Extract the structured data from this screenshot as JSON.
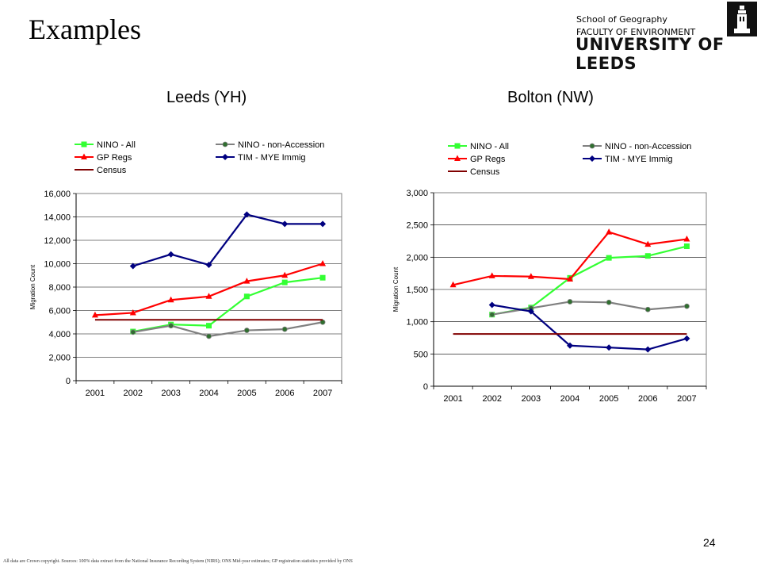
{
  "slide": {
    "title": "Examples",
    "dept": "School of Geography",
    "faculty": "FACULTY OF ENVIRONMENT",
    "university": "UNIVERSITY OF LEEDS",
    "page_number": "24",
    "footnote": "All data are Crown copyright. Sources: 100% data extract from the National Insurance Recording System (NIRS); ONS Mid-year estimates; GP registration statistics provided by ONS"
  },
  "colors": {
    "nino_all": "#33ff33",
    "nino_non_accession": "#808080",
    "gp_regs": "#ff0000",
    "tim_mye": "#000080",
    "census": "#800000"
  },
  "chart_data": [
    {
      "type": "line",
      "title": "Leeds (YH)",
      "ylabel": "Migration Count",
      "xlabel": "",
      "categories": [
        "2001",
        "2002",
        "2003",
        "2004",
        "2005",
        "2006",
        "2007"
      ],
      "ylim": [
        0,
        16000
      ],
      "yticks": [
        "0",
        "2,000",
        "4,000",
        "6,000",
        "8,000",
        "10,000",
        "12,000",
        "14,000",
        "16,000"
      ],
      "yticks_values": [
        0,
        2000,
        4000,
        6000,
        8000,
        10000,
        12000,
        14000,
        16000
      ],
      "grid": true,
      "legend": "top",
      "series": [
        {
          "name": "NINO - All",
          "key": "nino_all",
          "marker": "square",
          "values": [
            null,
            4200,
            4800,
            4700,
            7200,
            8400,
            8800
          ]
        },
        {
          "name": "NINO - non-Accession",
          "key": "nino_non_accession",
          "marker": "circle",
          "values": [
            null,
            4150,
            4700,
            3800,
            4300,
            4400,
            5000
          ]
        },
        {
          "name": "GP Regs",
          "key": "gp_regs",
          "marker": "triangle",
          "values": [
            5600,
            5800,
            6900,
            7200,
            8500,
            9000,
            10000
          ]
        },
        {
          "name": "TIM - MYE Immig",
          "key": "tim_mye",
          "marker": "diamond",
          "values": [
            null,
            9800,
            10800,
            9900,
            14200,
            13400,
            13400
          ]
        },
        {
          "name": "Census",
          "key": "census",
          "marker": "none",
          "values": [
            5200,
            5200,
            5200,
            5200,
            5200,
            5200,
            5200
          ]
        }
      ]
    },
    {
      "type": "line",
      "title": "Bolton (NW)",
      "ylabel": "Migration Count",
      "xlabel": "",
      "categories": [
        "2001",
        "2002",
        "2003",
        "2004",
        "2005",
        "2006",
        "2007"
      ],
      "ylim": [
        0,
        3000
      ],
      "yticks": [
        "0",
        "500",
        "1,000",
        "1,500",
        "2,000",
        "2,500",
        "3,000"
      ],
      "yticks_values": [
        0,
        500,
        1000,
        1500,
        2000,
        2500,
        3000
      ],
      "grid": true,
      "legend": "top",
      "series": [
        {
          "name": "NINO - All",
          "key": "nino_all",
          "marker": "square",
          "values": [
            null,
            1110,
            1220,
            1680,
            1990,
            2020,
            2170
          ]
        },
        {
          "name": "NINO - non-Accession",
          "key": "nino_non_accession",
          "marker": "circle",
          "values": [
            null,
            1110,
            1210,
            1310,
            1300,
            1190,
            1240
          ]
        },
        {
          "name": "GP Regs",
          "key": "gp_regs",
          "marker": "triangle",
          "values": [
            1570,
            1710,
            1700,
            1660,
            2390,
            2200,
            2280
          ]
        },
        {
          "name": "TIM - MYE Immig",
          "key": "tim_mye",
          "marker": "diamond",
          "values": [
            null,
            1260,
            1160,
            630,
            600,
            570,
            740
          ]
        },
        {
          "name": "Census",
          "key": "census",
          "marker": "none",
          "values": [
            810,
            810,
            810,
            810,
            810,
            810,
            810
          ]
        }
      ]
    }
  ]
}
